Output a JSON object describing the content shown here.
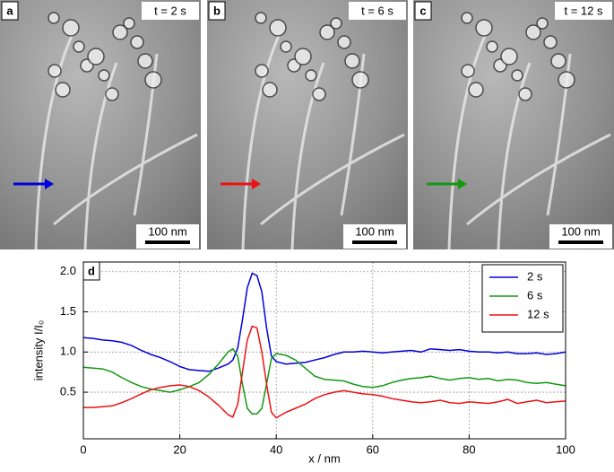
{
  "images": [
    {
      "label": "a",
      "time": "t = 2 s",
      "scale": "100 nm"
    },
    {
      "label": "b",
      "time": "t = 6 s",
      "scale": "100 nm"
    },
    {
      "label": "c",
      "time": "t = 12 s",
      "scale": "100 nm"
    }
  ],
  "chart_data": {
    "type": "line",
    "panel_label": "d",
    "x_label": "x / nm",
    "y_label": "intensity I/I₀",
    "x": [
      0,
      2,
      4,
      6,
      8,
      10,
      12,
      14,
      16,
      18,
      20,
      22,
      24,
      26,
      28,
      30,
      31,
      32,
      33,
      34,
      35,
      36,
      37,
      38,
      39,
      40,
      42,
      44,
      46,
      48,
      50,
      52,
      54,
      56,
      58,
      60,
      62,
      64,
      66,
      68,
      70,
      72,
      74,
      76,
      78,
      80,
      82,
      84,
      86,
      88,
      90,
      92,
      94,
      96,
      98,
      100
    ],
    "series": [
      {
        "name": "2 s",
        "color": "#0000dd",
        "values": [
          1.18,
          1.17,
          1.15,
          1.14,
          1.12,
          1.08,
          1.02,
          0.97,
          0.93,
          0.88,
          0.82,
          0.78,
          0.77,
          0.76,
          0.8,
          0.85,
          0.9,
          1.05,
          1.4,
          1.8,
          1.98,
          1.95,
          1.75,
          1.3,
          0.95,
          0.88,
          0.85,
          0.86,
          0.87,
          0.9,
          0.93,
          0.97,
          1.0,
          1.0,
          1.01,
          1.0,
          0.99,
          1.0,
          1.01,
          1.02,
          1.0,
          1.04,
          1.03,
          1.02,
          1.03,
          1.01,
          1.0,
          1.0,
          0.99,
          1.0,
          0.98,
          0.98,
          0.99,
          0.97,
          0.98,
          1.0
        ]
      },
      {
        "name": "6 s",
        "color": "#119911",
        "values": [
          0.81,
          0.8,
          0.79,
          0.75,
          0.68,
          0.62,
          0.57,
          0.54,
          0.52,
          0.5,
          0.53,
          0.57,
          0.62,
          0.72,
          0.85,
          1.0,
          1.04,
          0.95,
          0.6,
          0.3,
          0.23,
          0.23,
          0.3,
          0.6,
          0.92,
          0.98,
          0.96,
          0.9,
          0.8,
          0.7,
          0.66,
          0.65,
          0.64,
          0.6,
          0.57,
          0.56,
          0.58,
          0.62,
          0.65,
          0.67,
          0.68,
          0.7,
          0.67,
          0.65,
          0.67,
          0.68,
          0.66,
          0.67,
          0.64,
          0.66,
          0.65,
          0.62,
          0.61,
          0.62,
          0.6,
          0.58
        ]
      },
      {
        "name": "12 s",
        "color": "#ee1111",
        "values": [
          0.31,
          0.31,
          0.32,
          0.33,
          0.37,
          0.42,
          0.48,
          0.53,
          0.56,
          0.58,
          0.59,
          0.57,
          0.52,
          0.44,
          0.34,
          0.22,
          0.19,
          0.35,
          0.75,
          1.15,
          1.32,
          1.3,
          1.0,
          0.6,
          0.25,
          0.18,
          0.25,
          0.3,
          0.35,
          0.42,
          0.47,
          0.5,
          0.52,
          0.5,
          0.48,
          0.47,
          0.45,
          0.42,
          0.4,
          0.38,
          0.37,
          0.38,
          0.4,
          0.37,
          0.36,
          0.38,
          0.37,
          0.36,
          0.38,
          0.41,
          0.36,
          0.38,
          0.4,
          0.37,
          0.38,
          0.39
        ]
      }
    ],
    "xlim": [
      0,
      100
    ],
    "xticks": [
      0,
      20,
      40,
      60,
      80,
      100
    ],
    "ylim": [
      -0.08,
      2.12
    ],
    "yticks": [
      {
        "value": 0.5,
        "label": "0.5"
      },
      {
        "value": 1.0,
        "label": "1.0"
      },
      {
        "value": 1.5,
        "label": "1.5"
      },
      {
        "value": 2.0,
        "label": "2.0"
      }
    ],
    "grid": true,
    "legend": "upper right"
  }
}
